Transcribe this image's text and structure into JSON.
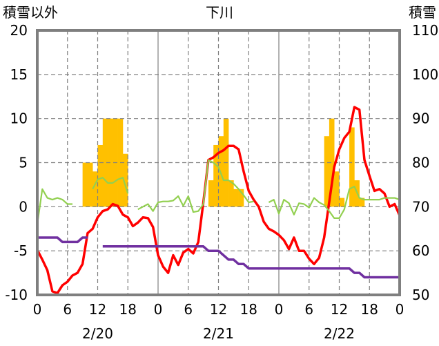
{
  "chart_data": {
    "type": "line",
    "title": "下川",
    "left_axis_label": "積雪以外",
    "right_axis_label": "積雪",
    "left_ylim": [
      -10,
      20
    ],
    "left_yticks": [
      -10,
      -5,
      0,
      5,
      10,
      15,
      20
    ],
    "right_ylim": [
      50,
      110
    ],
    "right_yticks": [
      50,
      60,
      70,
      80,
      90,
      100,
      110
    ],
    "x_tick_labels": [
      "0",
      "6",
      "12",
      "18",
      "0",
      "6",
      "12",
      "18",
      "0",
      "6",
      "12",
      "18",
      "0"
    ],
    "date_labels": [
      "2/20",
      "2/21",
      "2/22"
    ],
    "hour_step": 6,
    "bars": {
      "name": "precipitation",
      "color": "#ffc000",
      "hours": [
        9,
        10,
        11,
        12,
        13,
        14,
        15,
        16,
        17,
        34,
        35,
        36,
        37,
        38,
        39,
        40,
        57,
        58,
        59,
        60,
        62,
        63,
        64
      ],
      "values": [
        5,
        5,
        4,
        7,
        10,
        10,
        10,
        10,
        6,
        3,
        7,
        8,
        10,
        3,
        2,
        2,
        8,
        10,
        4,
        1,
        9,
        3,
        1
      ]
    },
    "series": [
      {
        "color": "#ff0000",
        "axis": "left",
        "values": [
          -4.9,
          -6.0,
          -7.2,
          -9.6,
          -9.8,
          -8.9,
          -8.5,
          -7.8,
          -7.5,
          -6.5,
          -3.0,
          -2.5,
          -1.2,
          -0.5,
          -0.3,
          0.3,
          0.1,
          -0.9,
          -1.2,
          -2.2,
          -1.8,
          -1.2,
          -1.3,
          -2.3,
          -5.5,
          -6.8,
          -7.5,
          -5.5,
          -6.6,
          -5.2,
          -4.8,
          -5.3,
          -4.0,
          0.5,
          5.3,
          5.6,
          6.1,
          6.4,
          6.9,
          6.9,
          6.5,
          4.0,
          1.8,
          0.8,
          0.0,
          -1.7,
          -2.5,
          -2.8,
          -3.2,
          -3.8,
          -4.8,
          -3.5,
          -5.0,
          -5.0,
          -5.9,
          -6.5,
          -5.8,
          -3.5,
          0.5,
          4.5,
          6.5,
          7.8,
          8.5,
          11.3,
          11.0,
          5.3,
          3.5,
          1.8,
          2.0,
          1.5,
          0.0,
          0.3,
          -1.0
        ]
      },
      {
        "color": "#92d050",
        "axis": "left",
        "values": [
          -2.0,
          2.0,
          1.0,
          0.8,
          1.0,
          0.8,
          0.3,
          0.3,
          null,
          null,
          null,
          2.0,
          3.1,
          3.3,
          2.7,
          2.7,
          3.1,
          3.3,
          1.5,
          null,
          -0.3,
          0.0,
          0.3,
          -0.5,
          0.5,
          0.6,
          0.6,
          0.7,
          1.2,
          0.1,
          1.2,
          -0.6,
          -0.5,
          0.3,
          5.3,
          5.0,
          4.5,
          3.0,
          3.0,
          2.6,
          2.0,
          1.3,
          0.5,
          0.6,
          null,
          null,
          0.5,
          0.8,
          -0.8,
          0.8,
          0.4,
          -0.9,
          0.4,
          0.3,
          -0.1,
          1.0,
          0.5,
          0.2,
          -0.5,
          -1.3,
          -1.3,
          -0.3,
          2.0,
          2.3,
          1.0,
          0.8,
          0.8,
          0.8,
          0.8,
          1.0,
          1.0,
          1.0,
          0.8
        ]
      },
      {
        "color": "#7030a0",
        "axis": "right",
        "values": [
          63,
          63,
          63,
          63,
          63,
          62,
          62,
          62,
          62,
          63,
          63,
          null,
          null,
          61,
          61,
          61,
          61,
          61,
          61,
          61,
          61,
          61,
          61,
          61,
          61,
          61,
          61,
          61,
          61,
          61,
          61,
          61,
          61,
          61,
          60,
          60,
          60,
          59,
          58,
          58,
          57,
          57,
          56,
          56,
          56,
          56,
          56,
          56,
          56,
          56,
          56,
          56,
          56,
          56,
          56,
          56,
          56,
          56,
          56,
          56,
          56,
          56,
          56,
          55,
          55,
          54,
          54,
          54,
          54,
          54,
          54,
          54,
          54
        ]
      }
    ]
  }
}
